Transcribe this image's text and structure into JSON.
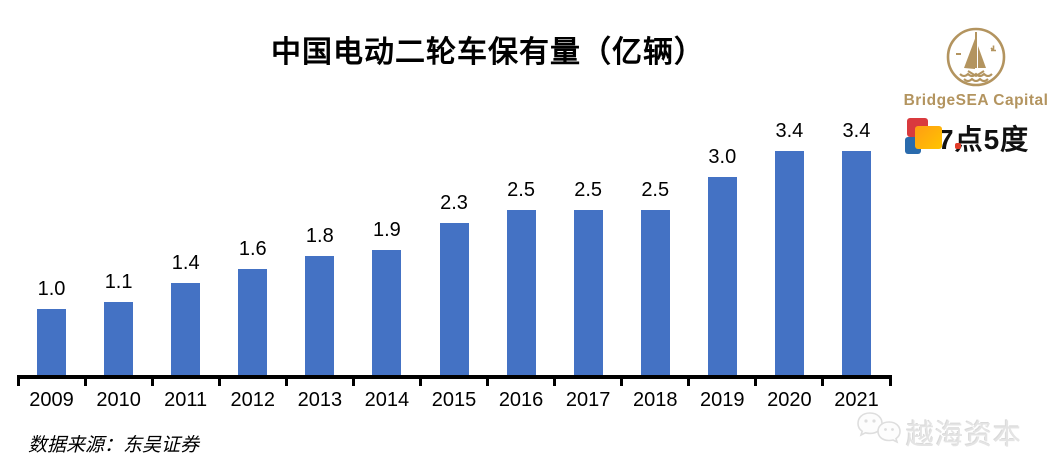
{
  "source_note": "数据来源：东吴证券",
  "branding": {
    "bridgesea": {
      "label": "BridgeSEA Capital",
      "icon": "sailboat-circle-icon",
      "color": "#b3945f"
    },
    "seven_point_five": {
      "label": "7点5度",
      "icon": "overlapping-squares-icon",
      "square_colors": [
        "#d93a3e",
        "#ffa91e",
        "#2a6bad"
      ],
      "accent_dot_color": "#e03c28"
    },
    "watermark": {
      "label": "越海资本",
      "icon": "wechat-bubbles-icon",
      "color": "#e4e4e4"
    }
  },
  "colors": {
    "bar": "#4472c4",
    "axis": "#000000",
    "title_text": "#000000",
    "background": "#ffffff"
  },
  "chart_data": {
    "type": "bar",
    "title": "中国电动二轮车保有量（亿辆）",
    "categories": [
      "2009",
      "2010",
      "2011",
      "2012",
      "2013",
      "2014",
      "2015",
      "2016",
      "2017",
      "2018",
      "2019",
      "2020",
      "2021"
    ],
    "values": [
      1.0,
      1.1,
      1.4,
      1.6,
      1.8,
      1.9,
      2.3,
      2.5,
      2.5,
      2.5,
      3.0,
      3.4,
      3.4
    ],
    "xlabel": "",
    "ylabel": "",
    "ylim": [
      0,
      3.6
    ],
    "grid": false,
    "legend": false,
    "value_labels": "above-bars, one decimal",
    "bar_color": "#4472c4"
  }
}
